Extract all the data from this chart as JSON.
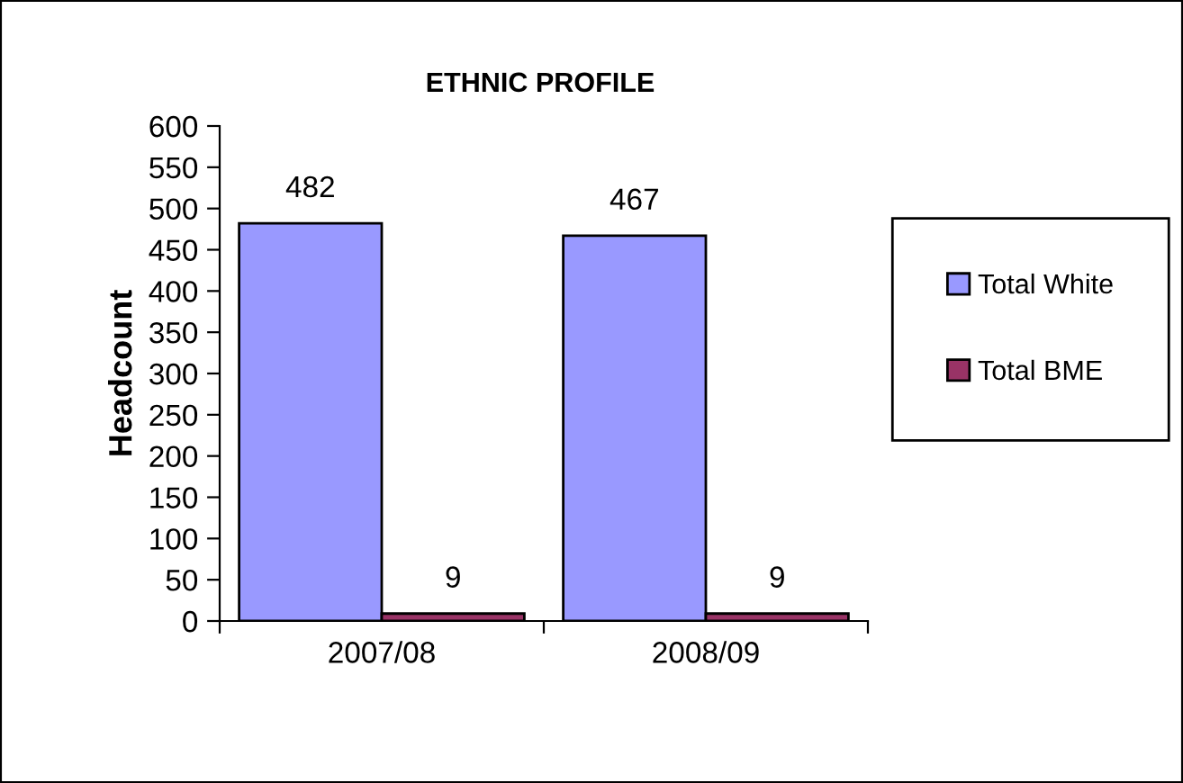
{
  "chart_data": {
    "type": "bar",
    "title": "ETHNIC PROFILE",
    "ylabel": "Headcount",
    "categories": [
      "2007/08",
      "2008/09"
    ],
    "series": [
      {
        "name": "Total White",
        "color": "#9999ff",
        "values": [
          482,
          467
        ]
      },
      {
        "name": "Total BME",
        "color": "#993366",
        "values": [
          9,
          9
        ]
      }
    ],
    "ylim": [
      0,
      600
    ],
    "yticks": [
      0,
      50,
      100,
      150,
      200,
      250,
      300,
      350,
      400,
      450,
      500,
      550,
      600
    ],
    "data_labels": true,
    "grid": false,
    "legend": "right"
  }
}
